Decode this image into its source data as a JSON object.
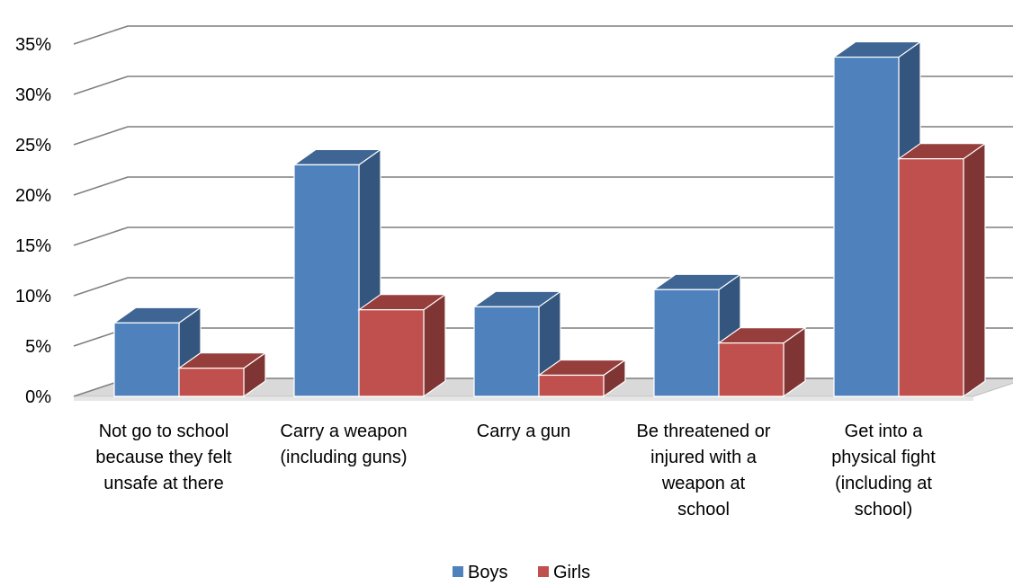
{
  "chart_data": {
    "type": "bar",
    "categories": [
      [
        "Not go to school",
        "because they felt",
        "unsafe at there"
      ],
      [
        "Carry a weapon",
        "(including guns)"
      ],
      [
        "Carry a gun"
      ],
      [
        "Be threatened or",
        "injured with a",
        "weapon at",
        "school"
      ],
      [
        "Get into a",
        "physical fight",
        "(including at",
        "school)"
      ]
    ],
    "series": [
      {
        "name": "Boys",
        "values": [
          7.3,
          23.0,
          8.9,
          10.6,
          33.7
        ],
        "color": "#4f81bd"
      },
      {
        "name": "Girls",
        "values": [
          2.8,
          8.6,
          2.1,
          5.3,
          23.6
        ],
        "color": "#c0504d"
      }
    ],
    "ylim": [
      0,
      35
    ],
    "yticks": [
      "0%",
      "5%",
      "10%",
      "15%",
      "20%",
      "25%",
      "30%",
      "35%"
    ],
    "ytick_values": [
      0,
      5,
      10,
      15,
      20,
      25,
      30,
      35
    ],
    "grid": true,
    "legend_position": "bottom-center",
    "style": "3d-clustered-column"
  }
}
